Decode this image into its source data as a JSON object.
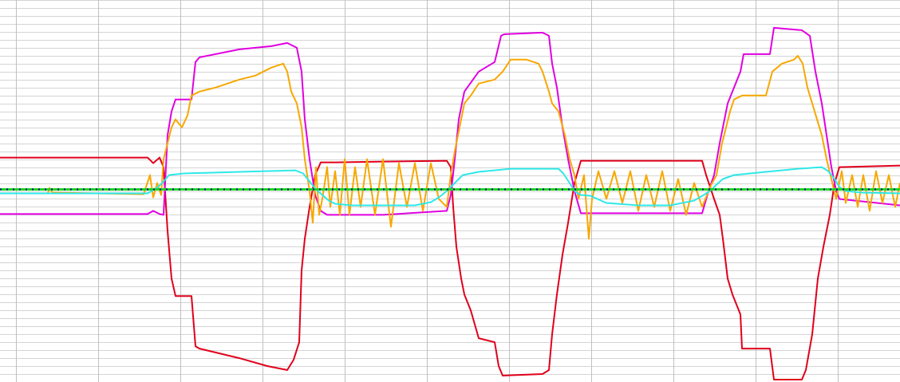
{
  "chart_data": {
    "type": "line",
    "title": "",
    "xlabel": "",
    "ylabel": "",
    "grid": true,
    "legend": "none",
    "xlim": [
      0,
      1128
    ],
    "ylim": [
      -240,
      240
    ],
    "gridlines": {
      "vertical_every": 103,
      "horizontal_every": 10,
      "major_color": "#c0c0c0",
      "minor_color": "#d4d4d4"
    },
    "series": [
      {
        "color": "#e0001b",
        "points": [
          [
            0,
            42
          ],
          [
            185,
            42
          ],
          [
            192,
            35
          ],
          [
            200,
            42
          ],
          [
            205,
            30
          ],
          [
            210,
            -50
          ],
          [
            215,
            -110
          ],
          [
            220,
            -132
          ],
          [
            240,
            -132
          ],
          [
            245,
            -195
          ],
          [
            250,
            -198
          ],
          [
            300,
            -210
          ],
          [
            335,
            -220
          ],
          [
            360,
            -225
          ],
          [
            368,
            -212
          ],
          [
            375,
            -190
          ],
          [
            378,
            -100
          ],
          [
            382,
            -60
          ],
          [
            388,
            -20
          ],
          [
            395,
            20
          ],
          [
            402,
            36
          ],
          [
            420,
            36
          ],
          [
            480,
            37
          ],
          [
            560,
            38
          ],
          [
            565,
            30
          ],
          [
            568,
            -20
          ],
          [
            572,
            -70
          ],
          [
            578,
            -110
          ],
          [
            582,
            -130
          ],
          [
            590,
            -150
          ],
          [
            600,
            -185
          ],
          [
            620,
            -190
          ],
          [
            625,
            -220
          ],
          [
            630,
            -232
          ],
          [
            680,
            -230
          ],
          [
            688,
            -225
          ],
          [
            692,
            -180
          ],
          [
            698,
            -130
          ],
          [
            705,
            -80
          ],
          [
            712,
            -40
          ],
          [
            720,
            10
          ],
          [
            728,
            38
          ],
          [
            780,
            38
          ],
          [
            880,
            38
          ],
          [
            885,
            20
          ],
          [
            895,
            -10
          ],
          [
            902,
            -30
          ],
          [
            906,
            -60
          ],
          [
            912,
            -110
          ],
          [
            918,
            -130
          ],
          [
            928,
            -155
          ],
          [
            930,
            -198
          ],
          [
            965,
            -198
          ],
          [
            970,
            -237
          ],
          [
            1005,
            -237
          ],
          [
            1010,
            -225
          ],
          [
            1018,
            -180
          ],
          [
            1025,
            -110
          ],
          [
            1032,
            -70
          ],
          [
            1040,
            -30
          ],
          [
            1046,
            10
          ],
          [
            1052,
            30
          ],
          [
            1128,
            32
          ]
        ]
      },
      {
        "color": "#e000e0",
        "points": [
          [
            0,
            -29
          ],
          [
            185,
            -29
          ],
          [
            192,
            -25
          ],
          [
            200,
            -29
          ],
          [
            205,
            -30
          ],
          [
            210,
            70
          ],
          [
            215,
            100
          ],
          [
            220,
            115
          ],
          [
            240,
            115
          ],
          [
            245,
            162
          ],
          [
            250,
            168
          ],
          [
            300,
            178
          ],
          [
            340,
            182
          ],
          [
            360,
            186
          ],
          [
            372,
            180
          ],
          [
            378,
            150
          ],
          [
            382,
            90
          ],
          [
            388,
            40
          ],
          [
            395,
            -5
          ],
          [
            402,
            -25
          ],
          [
            410,
            -30
          ],
          [
            480,
            -30
          ],
          [
            560,
            -25
          ],
          [
            565,
            -5
          ],
          [
            570,
            40
          ],
          [
            575,
            90
          ],
          [
            582,
            125
          ],
          [
            600,
            150
          ],
          [
            620,
            162
          ],
          [
            628,
            195
          ],
          [
            632,
            197
          ],
          [
            680,
            199
          ],
          [
            688,
            195
          ],
          [
            692,
            160
          ],
          [
            698,
            130
          ],
          [
            705,
            80
          ],
          [
            712,
            40
          ],
          [
            720,
            0
          ],
          [
            728,
            -28
          ],
          [
            780,
            -28
          ],
          [
            880,
            -28
          ],
          [
            888,
            0
          ],
          [
            895,
            20
          ],
          [
            902,
            60
          ],
          [
            906,
            80
          ],
          [
            912,
            110
          ],
          [
            918,
            125
          ],
          [
            928,
            150
          ],
          [
            932,
            172
          ],
          [
            965,
            172
          ],
          [
            970,
            205
          ],
          [
            1005,
            202
          ],
          [
            1015,
            195
          ],
          [
            1022,
            150
          ],
          [
            1030,
            110
          ],
          [
            1036,
            70
          ],
          [
            1042,
            30
          ],
          [
            1048,
            0
          ],
          [
            1052,
            -10
          ],
          [
            1128,
            -18
          ]
        ]
      },
      {
        "color": "#f7a800",
        "points": [
          [
            0,
            -3
          ],
          [
            60,
            -3
          ],
          [
            62,
            4
          ],
          [
            66,
            -2
          ],
          [
            180,
            -4
          ],
          [
            188,
            20
          ],
          [
            192,
            -8
          ],
          [
            197,
            10
          ],
          [
            202,
            -5
          ],
          [
            205,
            40
          ],
          [
            210,
            60
          ],
          [
            215,
            80
          ],
          [
            220,
            90
          ],
          [
            228,
            80
          ],
          [
            235,
            95
          ],
          [
            240,
            120
          ],
          [
            250,
            125
          ],
          [
            270,
            130
          ],
          [
            300,
            140
          ],
          [
            320,
            145
          ],
          [
            340,
            155
          ],
          [
            355,
            160
          ],
          [
            360,
            150
          ],
          [
            365,
            125
          ],
          [
            372,
            110
          ],
          [
            378,
            80
          ],
          [
            382,
            40
          ],
          [
            388,
            0
          ],
          [
            392,
            -40
          ],
          [
            396,
            30
          ],
          [
            400,
            -30
          ],
          [
            404,
            -10
          ],
          [
            410,
            30
          ],
          [
            414,
            -20
          ],
          [
            420,
            25
          ],
          [
            426,
            -30
          ],
          [
            432,
            40
          ],
          [
            438,
            -30
          ],
          [
            445,
            30
          ],
          [
            452,
            -20
          ],
          [
            460,
            40
          ],
          [
            470,
            -30
          ],
          [
            480,
            40
          ],
          [
            490,
            -45
          ],
          [
            500,
            35
          ],
          [
            510,
            -20
          ],
          [
            520,
            35
          ],
          [
            530,
            -25
          ],
          [
            540,
            35
          ],
          [
            550,
            -10
          ],
          [
            560,
            -20
          ],
          [
            565,
            20
          ],
          [
            570,
            50
          ],
          [
            576,
            80
          ],
          [
            582,
            110
          ],
          [
            590,
            120
          ],
          [
            600,
            135
          ],
          [
            620,
            140
          ],
          [
            630,
            150
          ],
          [
            640,
            165
          ],
          [
            660,
            165
          ],
          [
            675,
            160
          ],
          [
            680,
            150
          ],
          [
            688,
            125
          ],
          [
            692,
            110
          ],
          [
            700,
            100
          ],
          [
            708,
            70
          ],
          [
            714,
            40
          ],
          [
            720,
            20
          ],
          [
            725,
            -10
          ],
          [
            732,
            20
          ],
          [
            738,
            -60
          ],
          [
            742,
            -10
          ],
          [
            750,
            25
          ],
          [
            760,
            -10
          ],
          [
            770,
            25
          ],
          [
            780,
            -15
          ],
          [
            790,
            25
          ],
          [
            800,
            -25
          ],
          [
            810,
            20
          ],
          [
            820,
            -20
          ],
          [
            830,
            25
          ],
          [
            840,
            -25
          ],
          [
            850,
            15
          ],
          [
            860,
            -30
          ],
          [
            870,
            10
          ],
          [
            880,
            -20
          ],
          [
            890,
            5
          ],
          [
            898,
            20
          ],
          [
            905,
            60
          ],
          [
            910,
            80
          ],
          [
            915,
            100
          ],
          [
            920,
            115
          ],
          [
            930,
            120
          ],
          [
            960,
            120
          ],
          [
            968,
            150
          ],
          [
            980,
            160
          ],
          [
            995,
            165
          ],
          [
            1000,
            170
          ],
          [
            1006,
            160
          ],
          [
            1012,
            130
          ],
          [
            1018,
            110
          ],
          [
            1024,
            90
          ],
          [
            1030,
            70
          ],
          [
            1036,
            40
          ],
          [
            1042,
            15
          ],
          [
            1048,
            -10
          ],
          [
            1055,
            25
          ],
          [
            1060,
            -15
          ],
          [
            1068,
            20
          ],
          [
            1075,
            -20
          ],
          [
            1082,
            20
          ],
          [
            1090,
            -25
          ],
          [
            1098,
            25
          ],
          [
            1106,
            -15
          ],
          [
            1114,
            20
          ],
          [
            1122,
            -20
          ],
          [
            1128,
            10
          ]
        ]
      },
      {
        "color": "#2ee8e8",
        "points": [
          [
            0,
            -3
          ],
          [
            185,
            -3
          ],
          [
            190,
            0
          ],
          [
            198,
            5
          ],
          [
            205,
            12
          ],
          [
            212,
            20
          ],
          [
            230,
            22
          ],
          [
            300,
            24
          ],
          [
            370,
            26
          ],
          [
            380,
            22
          ],
          [
            388,
            12
          ],
          [
            396,
            2
          ],
          [
            404,
            -5
          ],
          [
            412,
            -12
          ],
          [
            420,
            -16
          ],
          [
            440,
            -18
          ],
          [
            480,
            -18
          ],
          [
            520,
            -18
          ],
          [
            540,
            -14
          ],
          [
            550,
            -8
          ],
          [
            560,
            0
          ],
          [
            565,
            5
          ],
          [
            572,
            12
          ],
          [
            580,
            20
          ],
          [
            600,
            24
          ],
          [
            640,
            28
          ],
          [
            700,
            28
          ],
          [
            706,
            22
          ],
          [
            714,
            10
          ],
          [
            720,
            0
          ],
          [
            728,
            -5
          ],
          [
            740,
            -6
          ],
          [
            760,
            -15
          ],
          [
            800,
            -18
          ],
          [
            840,
            -18
          ],
          [
            870,
            -12
          ],
          [
            882,
            -5
          ],
          [
            890,
            0
          ],
          [
            898,
            8
          ],
          [
            906,
            15
          ],
          [
            920,
            20
          ],
          [
            960,
            24
          ],
          [
            1000,
            28
          ],
          [
            1030,
            30
          ],
          [
            1038,
            25
          ],
          [
            1046,
            15
          ],
          [
            1052,
            5
          ],
          [
            1060,
            0
          ],
          [
            1080,
            -2
          ],
          [
            1128,
            -3
          ]
        ]
      },
      {
        "color": "#1fd41f",
        "points": [
          [
            0,
            2
          ],
          [
            1128,
            2
          ]
        ]
      }
    ],
    "dotted_baseline": {
      "color": "#0000a0",
      "y": 2
    }
  }
}
